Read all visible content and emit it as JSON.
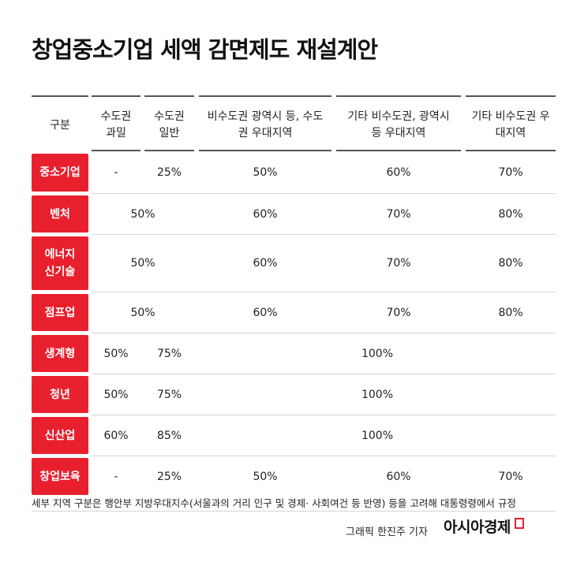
{
  "title": "창업중소기업 세액 감면제도 재설계안",
  "headers": [
    "구분",
    "수도권 과밀",
    "수도권 일반",
    "비수도권 광역시 등, 수도권 우대지역",
    "기타 비수도권, 광역시 등 우대지역",
    "기타 비수도권 우대지역"
  ],
  "rows": [
    {
      "label": "중소기업",
      "cells": [
        "-",
        "25%",
        "50%",
        "60%",
        "70%"
      ]
    },
    {
      "label": "벤처",
      "cells": [
        "50%",
        "60%",
        "70%",
        "80%"
      ]
    },
    {
      "label": "에너지 신기술",
      "cells": [
        "50%",
        "60%",
        "70%",
        "80%"
      ]
    },
    {
      "label": "점프업",
      "cells": [
        "50%",
        "60%",
        "70%",
        "80%"
      ]
    },
    {
      "label": "생계형",
      "cells": [
        "50%",
        "75%",
        "100%"
      ]
    },
    {
      "label": "청년",
      "cells": [
        "50%",
        "75%",
        "100%"
      ]
    },
    {
      "label": "신산업",
      "cells": [
        "60%",
        "85%",
        "100%"
      ]
    },
    {
      "label": "창업보육",
      "cells": [
        "-",
        "25%",
        "50%",
        "60%",
        "70%"
      ]
    }
  ],
  "note": "세부 지역 구분은 행안부 지방우대지수(서울과의 거리 인구 및 경제· 사회여건 등 반영) 등을 고려해 대통령령에서 규정",
  "credit": "그래픽  한진주 기자",
  "brand": "아시아경제",
  "accent_color": "#e8202e"
}
